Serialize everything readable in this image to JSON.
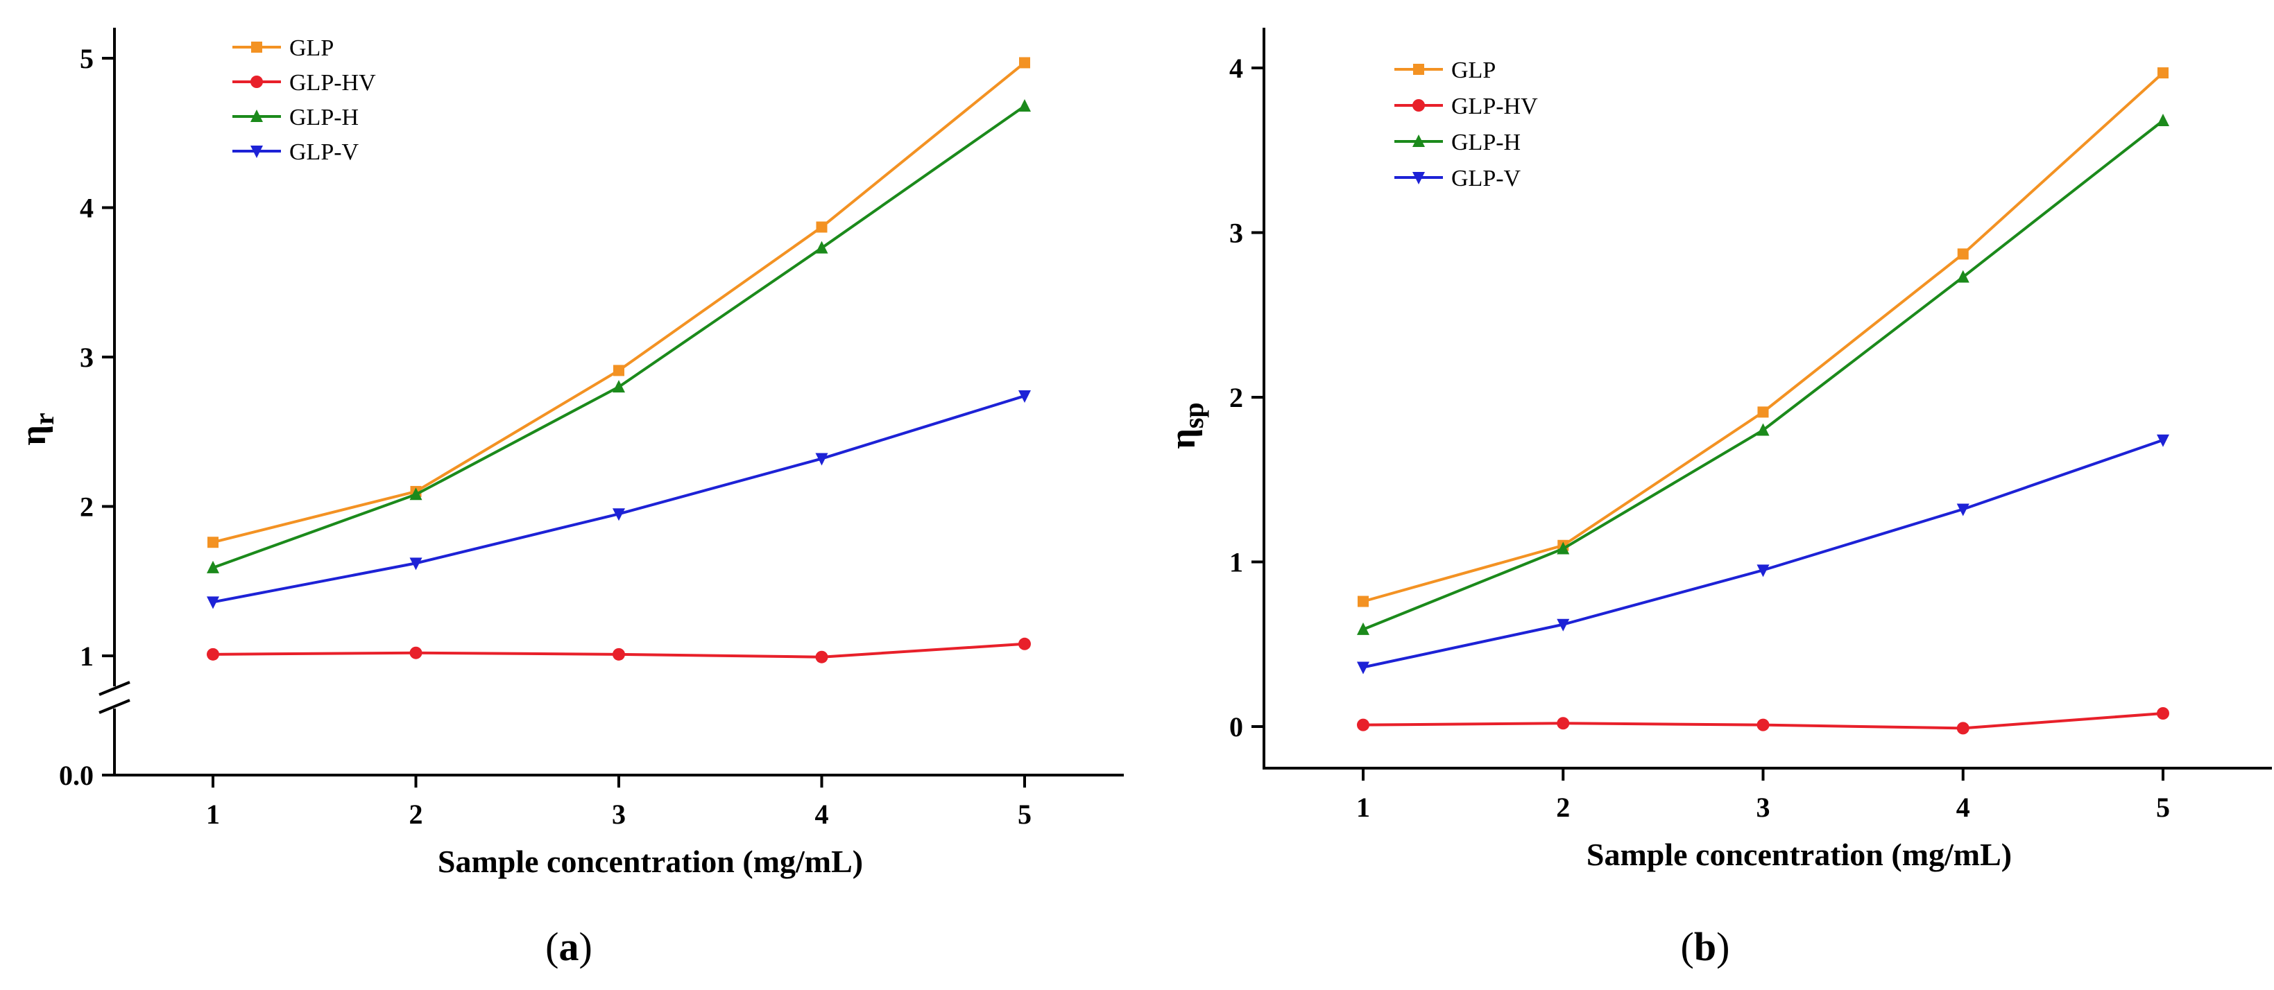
{
  "chart_data": [
    {
      "type": "line",
      "panel_label": "a",
      "x": [
        1,
        2,
        3,
        4,
        5
      ],
      "xlabel": "Sample concentration (mg/mL)",
      "ylabel": "η",
      "ylabel_sub": "r",
      "ylim": [
        0,
        5
      ],
      "axis_break": true,
      "x_ticks": [
        "1",
        "2",
        "3",
        "4",
        "5"
      ],
      "y_ticks": [
        "0.0",
        "1",
        "2",
        "3",
        "4",
        "5"
      ],
      "legend_position": "top-left",
      "series": [
        {
          "name": "GLP",
          "color": "#f39223",
          "marker": "square",
          "values": [
            1.76,
            2.1,
            2.91,
            3.87,
            4.97
          ]
        },
        {
          "name": "GLP-HV",
          "color": "#e8202a",
          "marker": "circle",
          "values": [
            1.01,
            1.02,
            1.01,
            0.99,
            1.08
          ]
        },
        {
          "name": "GLP-H",
          "color": "#1b8a1b",
          "marker": "triangle-up",
          "values": [
            1.59,
            2.08,
            2.8,
            3.73,
            4.68
          ]
        },
        {
          "name": "GLP-V",
          "color": "#1d22d6",
          "marker": "triangle-down",
          "values": [
            1.36,
            1.62,
            1.95,
            2.32,
            2.74
          ]
        }
      ]
    },
    {
      "type": "line",
      "panel_label": "b",
      "x": [
        1,
        2,
        3,
        4,
        5
      ],
      "xlabel": "Sample concentration (mg/mL)",
      "ylabel": "η",
      "ylabel_sub": "sp",
      "ylim": [
        -0.25,
        4.25
      ],
      "axis_break": false,
      "x_ticks": [
        "1",
        "2",
        "3",
        "4",
        "5"
      ],
      "y_ticks": [
        "0",
        "1",
        "2",
        "3",
        "4"
      ],
      "legend_position": "top-left",
      "series": [
        {
          "name": "GLP",
          "color": "#f39223",
          "marker": "square",
          "values": [
            0.76,
            1.1,
            1.91,
            2.87,
            3.97
          ]
        },
        {
          "name": "GLP-HV",
          "color": "#e8202a",
          "marker": "circle",
          "values": [
            0.01,
            0.02,
            0.01,
            -0.01,
            0.08
          ]
        },
        {
          "name": "GLP-H",
          "color": "#1b8a1b",
          "marker": "triangle-up",
          "values": [
            0.59,
            1.08,
            1.8,
            2.73,
            3.68
          ]
        },
        {
          "name": "GLP-V",
          "color": "#1d22d6",
          "marker": "triangle-down",
          "values": [
            0.36,
            0.62,
            0.95,
            1.32,
            1.74
          ]
        }
      ]
    }
  ]
}
